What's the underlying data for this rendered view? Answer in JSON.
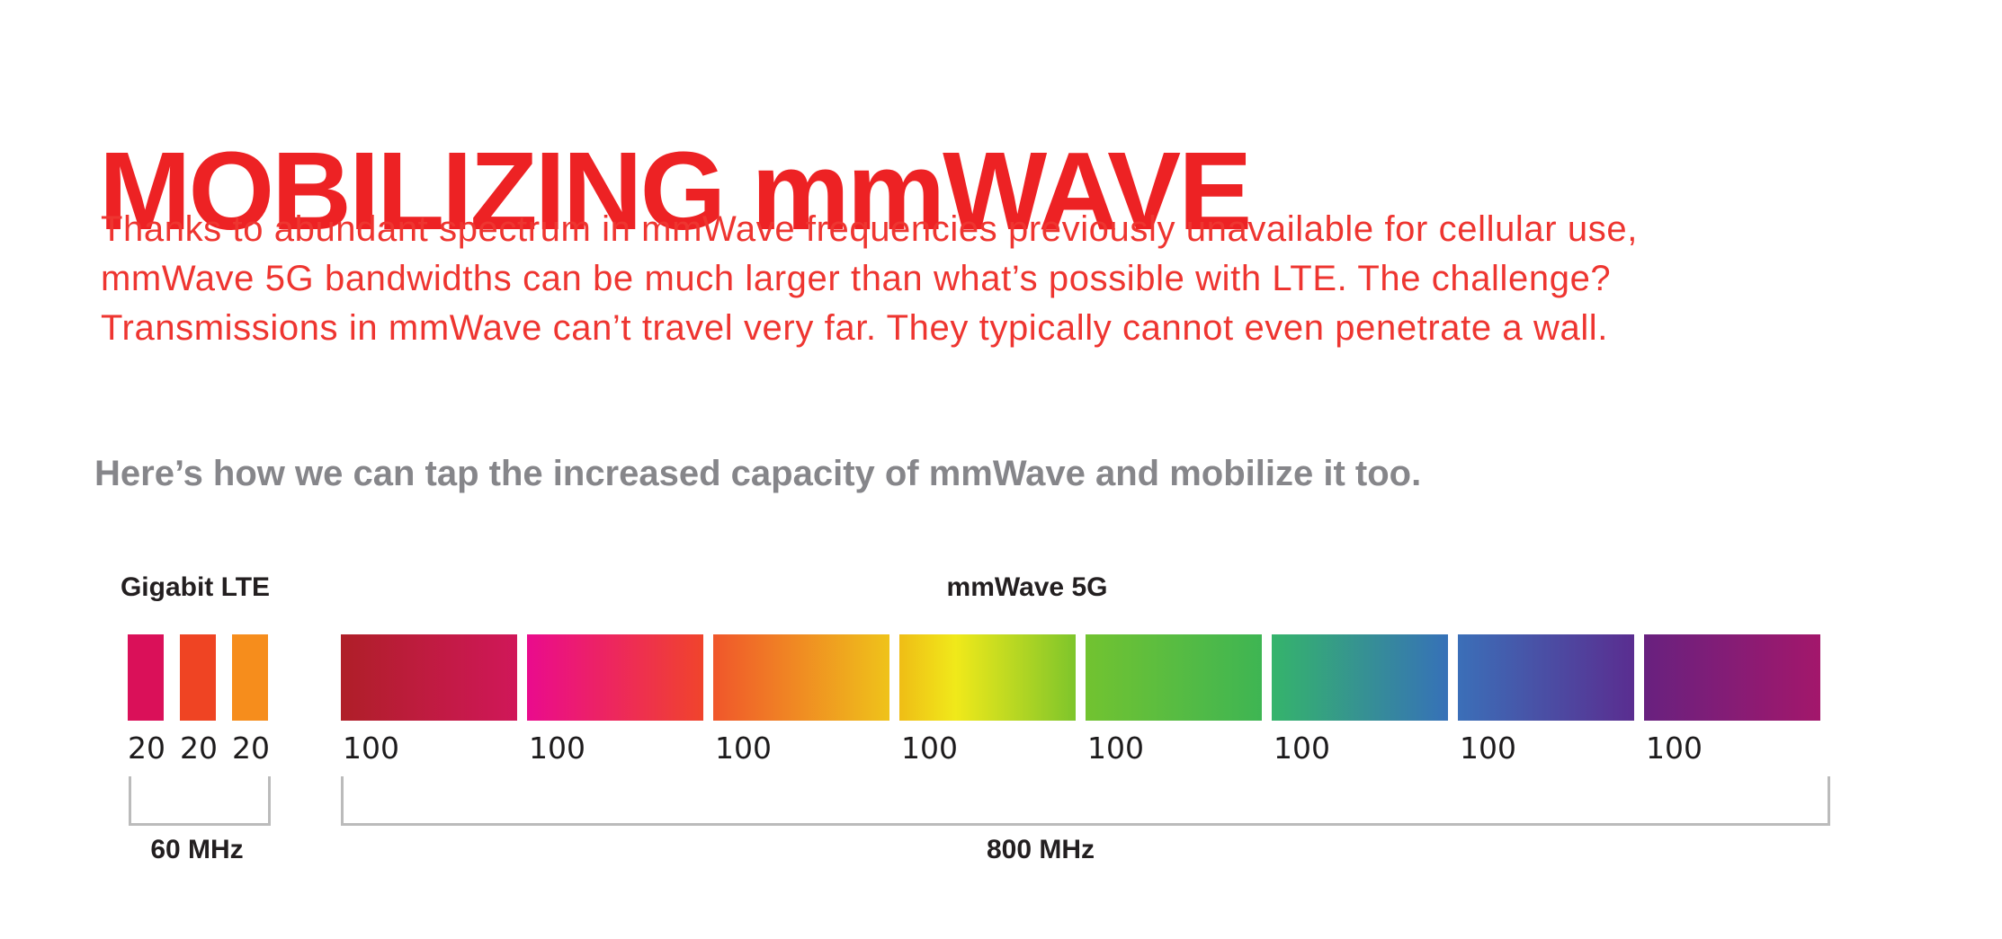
{
  "page": {
    "background": "#FFFFFF"
  },
  "title": {
    "text": "MOBILIZING mmWAVE",
    "color": "#ED2224"
  },
  "intro": {
    "color": "#EE3530",
    "lines": [
      "Thanks to abundant spectrum in mmWave frequencies previously unavailable for cellular use,",
      "mmWave 5G bandwidths can be much larger than what’s possible with LTE. The challenge?",
      "Transmissions in mmWave can’t travel very far. They typically cannot even penetrate a wall."
    ]
  },
  "subheading": {
    "text": "Here’s how we can tap the increased capacity of mmWave and mobilize it too.",
    "color": "#86868A"
  },
  "chart_data": {
    "type": "bar",
    "note": "Bar width encodes channel bandwidth in MHz; values are MHz per channel",
    "unit": "MHz",
    "bracket_color": "#BBBBBB",
    "value_label_color": "#1D1B1C",
    "group_label_color": "#231F20",
    "groups": [
      {
        "id": "gigabit-lte",
        "label": "Gigabit LTE",
        "bracket_label": "60 MHz",
        "total_mhz": 60,
        "bars": [
          {
            "value": "20",
            "stops": [
              "#DA1059"
            ]
          },
          {
            "value": "20",
            "stops": [
              "#EF4423"
            ]
          },
          {
            "value": "20",
            "stops": [
              "#F68D1C"
            ]
          }
        ]
      },
      {
        "id": "mmwave-5g",
        "label": "mmWave 5G",
        "bracket_label": "800 MHz",
        "total_mhz": 800,
        "bars": [
          {
            "value": "100",
            "stops": [
              "#AF1F28",
              "#D01759"
            ]
          },
          {
            "value": "100",
            "stops": [
              "#EA0B8D",
              "#F0442C"
            ]
          },
          {
            "value": "100",
            "stops": [
              "#F0562B",
              "#EFC31A"
            ]
          },
          {
            "value": "100",
            "stops": [
              "#EFBD16 0%",
              "#F0E91A 32%",
              "#7EC52B 100%"
            ]
          },
          {
            "value": "100",
            "stops": [
              "#72C330",
              "#3EB553"
            ]
          },
          {
            "value": "100",
            "stops": [
              "#35B46B",
              "#3671B8"
            ]
          },
          {
            "value": "100",
            "stops": [
              "#3B6FB8",
              "#5A2D90"
            ]
          },
          {
            "value": "100",
            "stops": [
              "#68217F",
              "#A3176B"
            ]
          }
        ]
      }
    ]
  }
}
